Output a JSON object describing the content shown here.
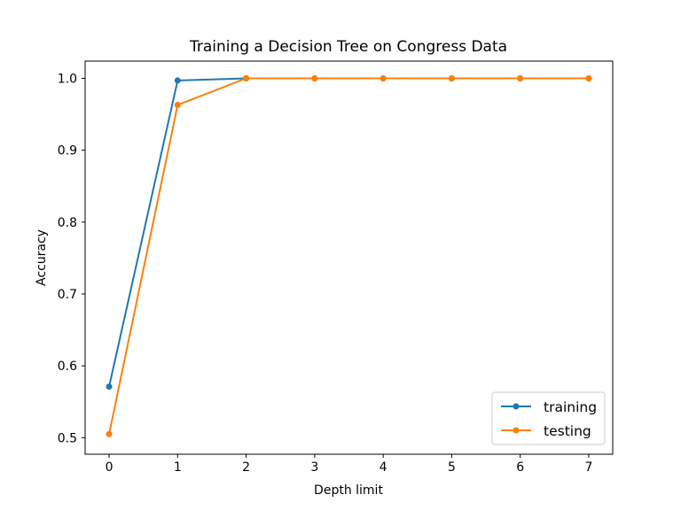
{
  "chart_data": {
    "type": "line",
    "title": "Training a Decision Tree on Congress Data",
    "xlabel": "Depth limit",
    "ylabel": "Accuracy",
    "x": [
      0,
      1,
      2,
      3,
      4,
      5,
      6,
      7
    ],
    "xticks": [
      "0",
      "1",
      "2",
      "3",
      "4",
      "5",
      "6",
      "7"
    ],
    "yticks": [
      "0.5",
      "0.6",
      "0.7",
      "0.8",
      "0.9",
      "1.0"
    ],
    "xlim": [
      -0.35,
      7.35
    ],
    "ylim": [
      0.477,
      1.024
    ],
    "grid": false,
    "legend_position": "lower right",
    "series": [
      {
        "name": "training",
        "color": "#1f77b4",
        "marker": "circle",
        "values": [
          0.571,
          0.997,
          1.0,
          1.0,
          1.0,
          1.0,
          1.0,
          1.0
        ]
      },
      {
        "name": "testing",
        "color": "#ff7f0e",
        "marker": "circle",
        "values": [
          0.505,
          0.963,
          1.0,
          1.0,
          1.0,
          1.0,
          1.0,
          1.0
        ]
      }
    ]
  }
}
